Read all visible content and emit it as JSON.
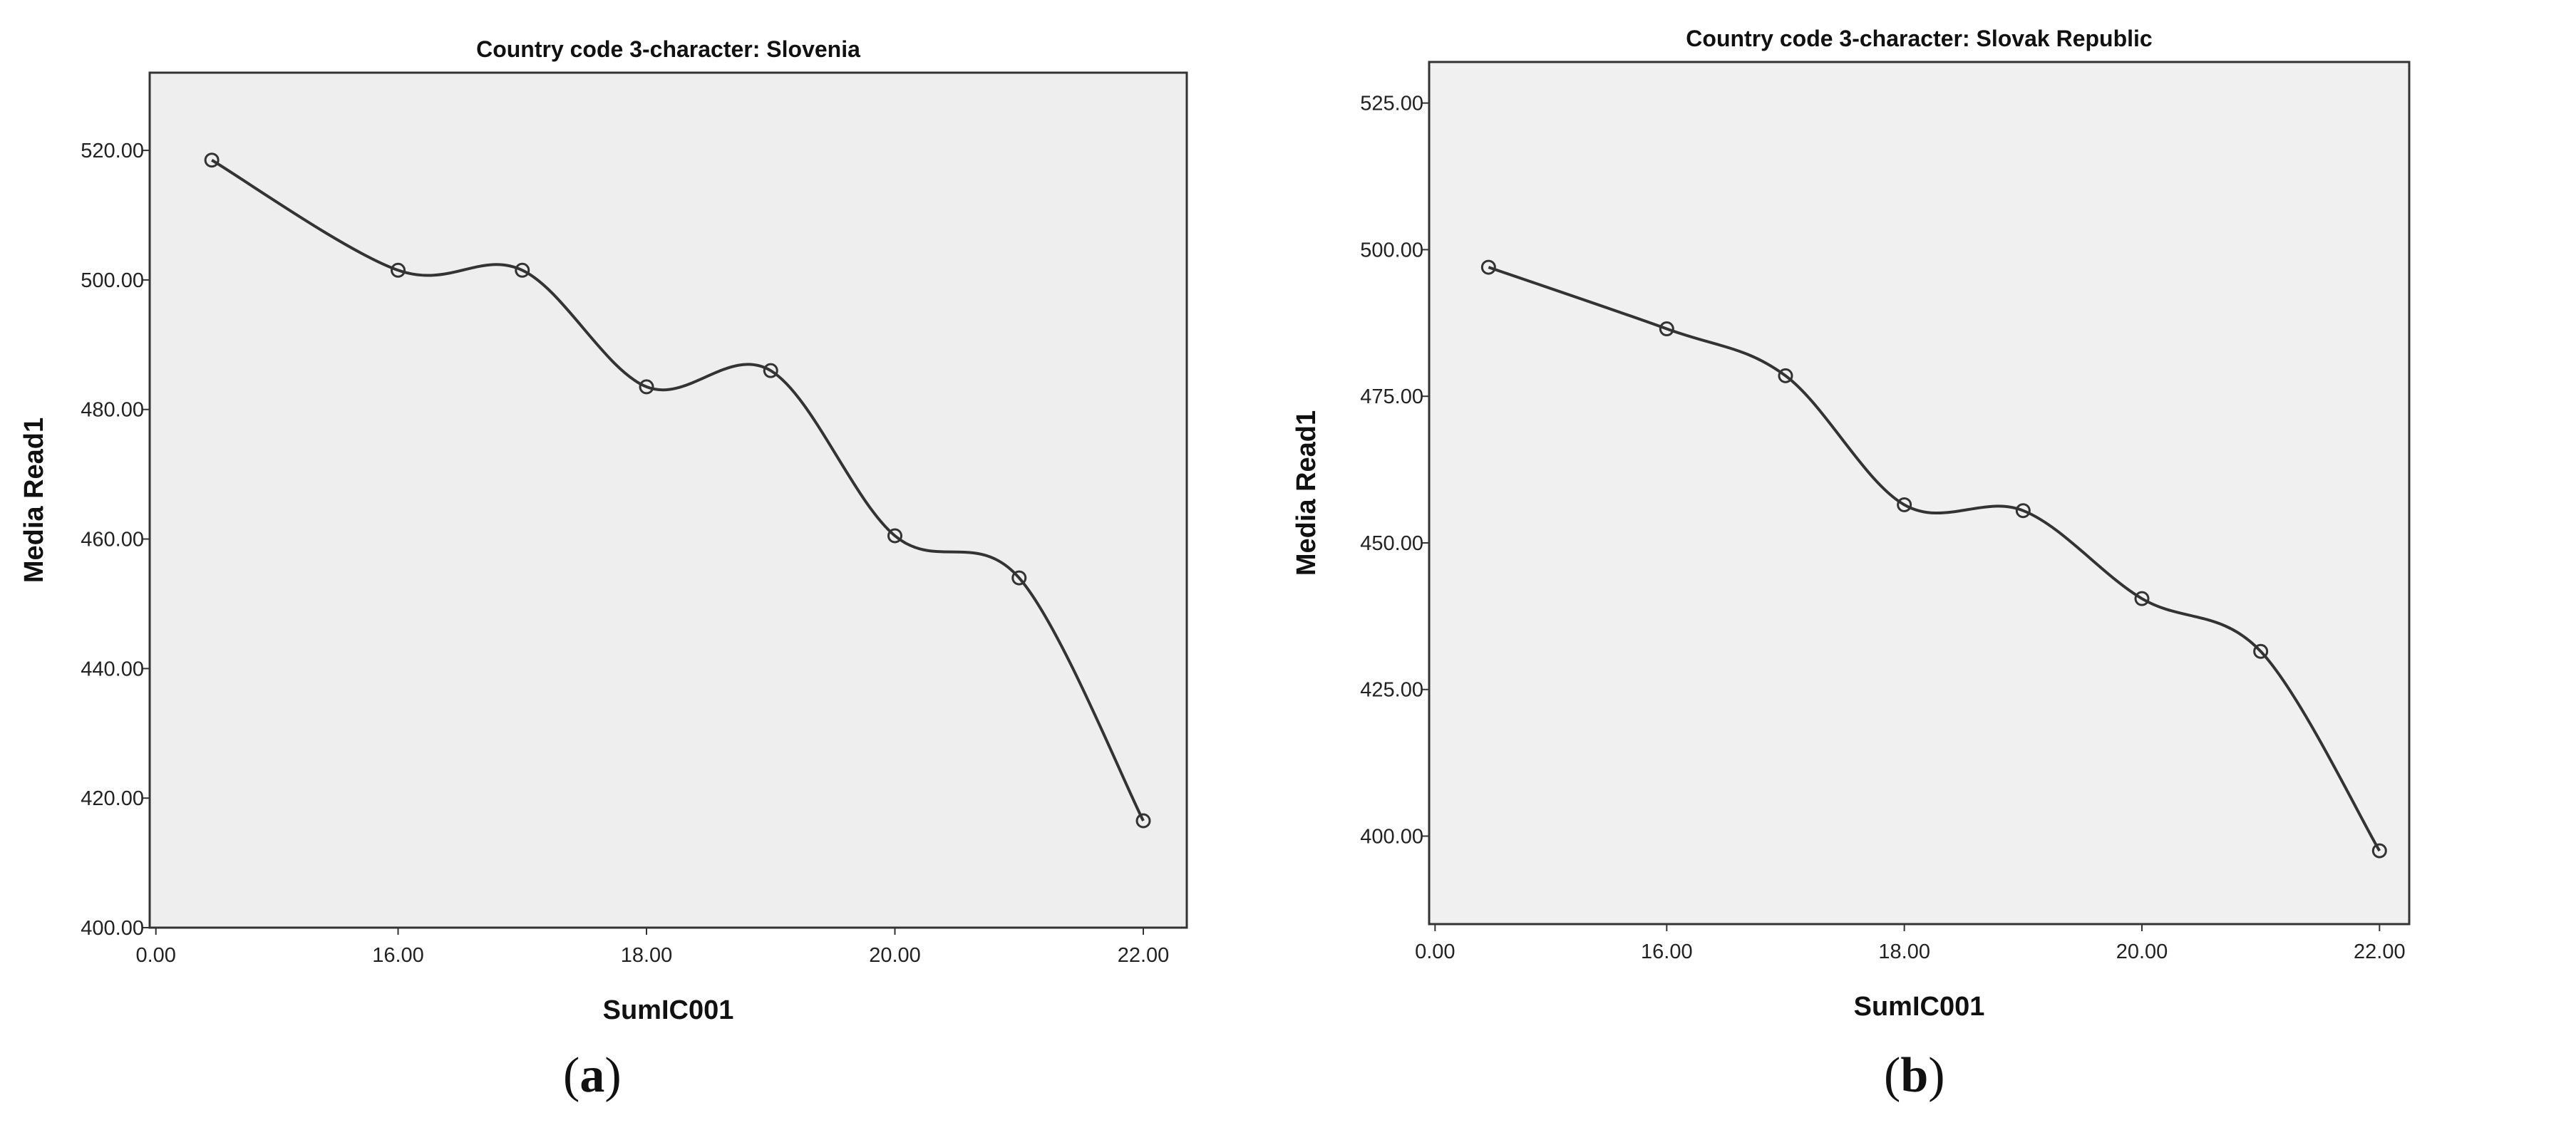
{
  "chart_data": [
    {
      "type": "line",
      "panel": "a",
      "title": "Country code 3-character: Slovenia",
      "xlabel": "SumIC001",
      "ylabel": "Media Read1",
      "x_ticks": [
        "0.00",
        "16.00",
        "18.00",
        "20.00",
        "22.00"
      ],
      "y_ticks": [
        "400.00",
        "420.00",
        "440.00",
        "460.00",
        "480.00",
        "500.00",
        "520.00"
      ],
      "ylim": [
        400,
        532
      ],
      "x_positions": [
        0.5,
        2,
        3,
        4,
        5,
        6,
        7,
        8
      ],
      "y_values": [
        518.5,
        501.5,
        501.5,
        483.5,
        486,
        460.5,
        454,
        416.5
      ],
      "background": "#eeeeee",
      "line_color": "#333333"
    },
    {
      "type": "line",
      "panel": "b",
      "title": "Country code 3-character: Slovak Republic",
      "xlabel": "SumIC001",
      "ylabel": "Media Read1",
      "x_ticks": [
        "0.00",
        "16.00",
        "18.00",
        "20.00",
        "22.00"
      ],
      "y_ticks": [
        "400.00",
        "425.00",
        "450.00",
        "475.00",
        "500.00",
        "525.00"
      ],
      "ylim": [
        385,
        532
      ],
      "x_positions": [
        0.5,
        2,
        3,
        4,
        5,
        6,
        7,
        8
      ],
      "y_values": [
        497,
        486.5,
        478.5,
        456.5,
        455.5,
        440.5,
        431.5,
        397.5
      ],
      "background": "#f0f0f0",
      "line_color": "#333333"
    }
  ],
  "captions": {
    "a": "a",
    "b": "b"
  }
}
